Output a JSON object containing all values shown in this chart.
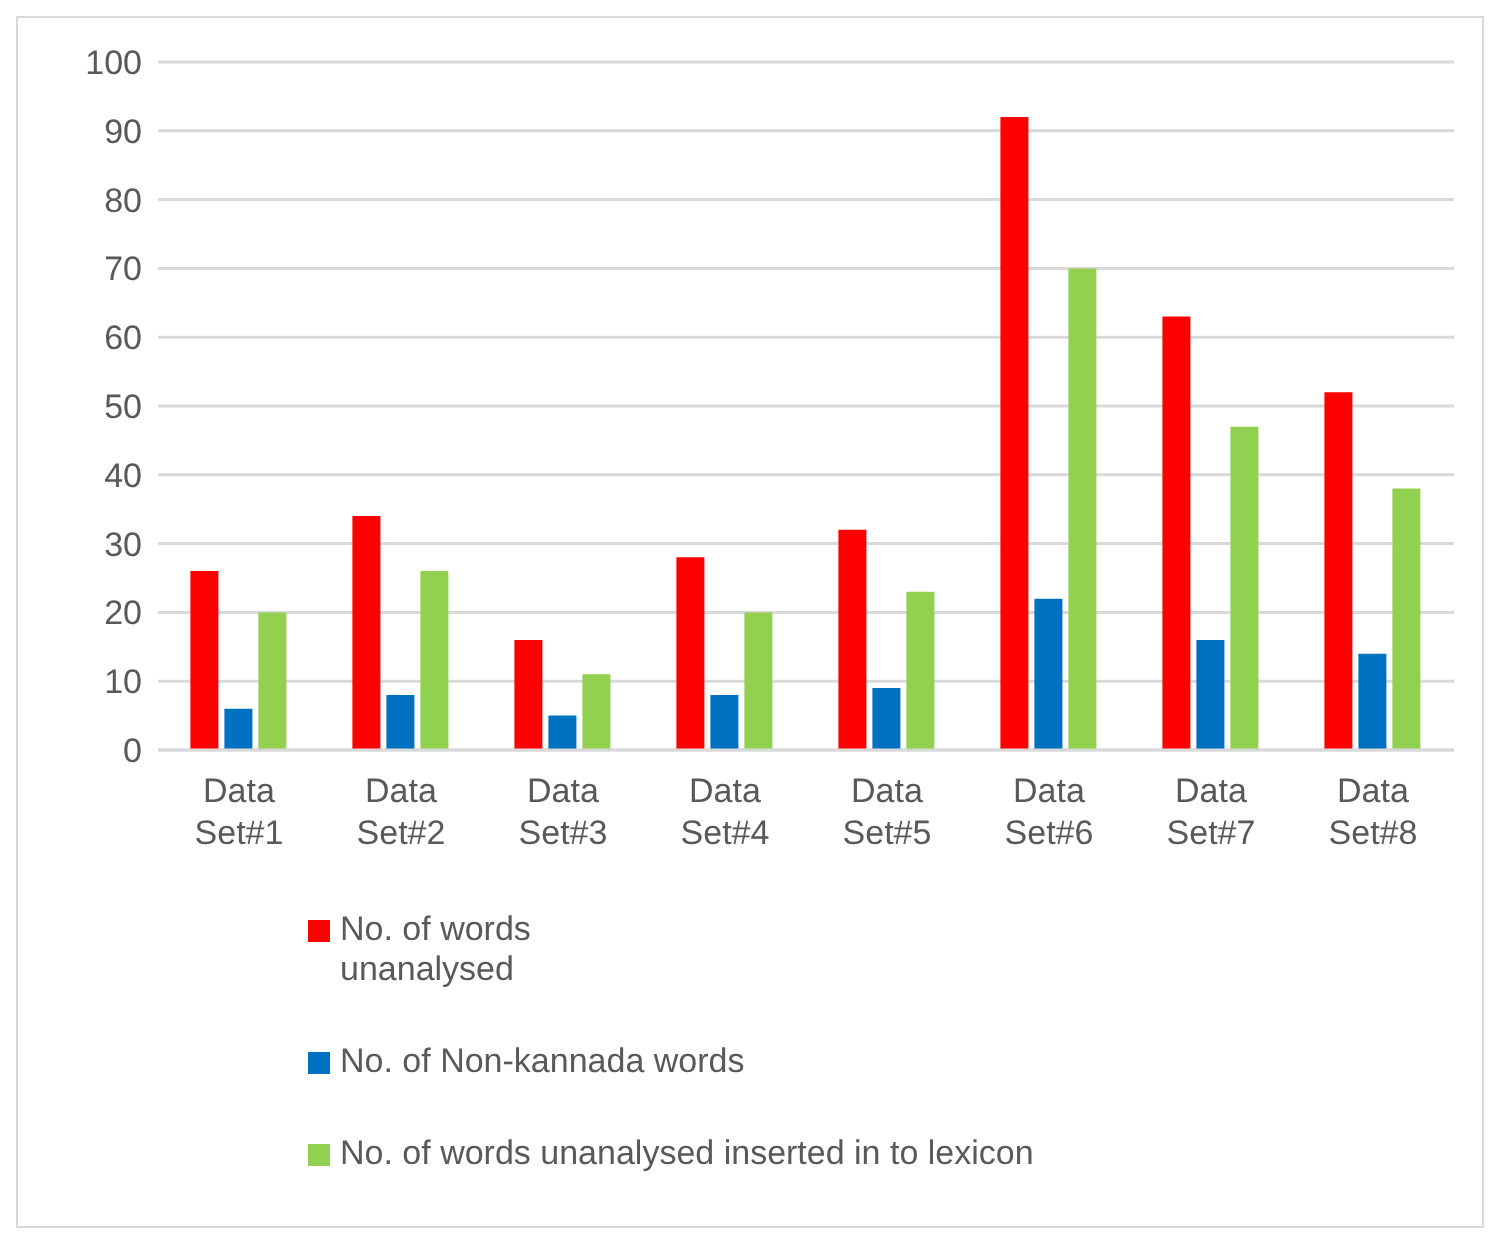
{
  "chart_data": {
    "type": "bar",
    "categories": [
      "Data Set#1",
      "Data Set#2",
      "Data Set#3",
      "Data Set#4",
      "Data Set#5",
      "Data Set#6",
      "Data Set#7",
      "Data Set#8"
    ],
    "series": [
      {
        "name": "No. of words unanalysed",
        "color": "#ff0000",
        "values": [
          26,
          34,
          16,
          28,
          32,
          92,
          63,
          52
        ]
      },
      {
        "name": "No. of Non-kannada words",
        "color": "#0070c0",
        "values": [
          6,
          8,
          5,
          8,
          9,
          22,
          16,
          14
        ]
      },
      {
        "name": "No. of words unanalysed inserted in to lexicon",
        "color": "#92d050",
        "values": [
          20,
          26,
          11,
          20,
          23,
          70,
          47,
          38
        ]
      }
    ],
    "ylim": [
      0,
      100
    ],
    "yticks": [
      0,
      10,
      20,
      30,
      40,
      50,
      60,
      70,
      80,
      90,
      100
    ],
    "grid": "y",
    "legend": "bottom"
  }
}
